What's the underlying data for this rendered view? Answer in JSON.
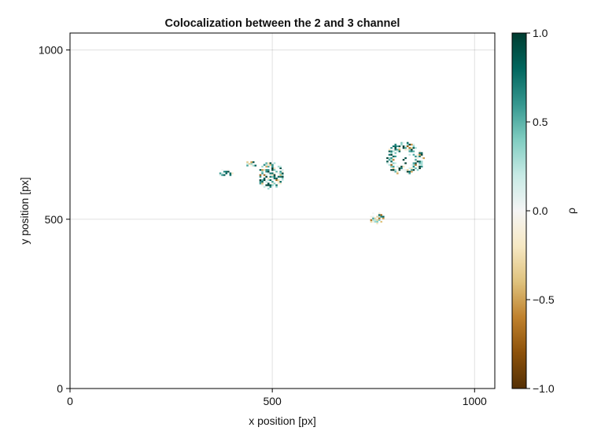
{
  "chart_data": {
    "type": "heatmap",
    "title": "Colocalization between the 2 and 3 channel",
    "xlabel": "x position [px]",
    "ylabel": "y position [px]",
    "xlim": [
      0,
      1050
    ],
    "ylim": [
      0,
      1050
    ],
    "x_ticks": [
      0,
      500,
      1000
    ],
    "y_ticks": [
      0,
      500,
      1000
    ],
    "x_tick_labels": [
      "0",
      "500",
      "1000"
    ],
    "y_tick_labels": [
      "0",
      "500",
      "1000"
    ],
    "grid": true,
    "colorbar": {
      "label": "ρ",
      "range": [
        -1.0,
        1.0
      ],
      "ticks": [
        -1.0,
        -0.5,
        0.0,
        0.5,
        1.0
      ],
      "tick_labels": [
        "−1.0",
        "−0.5",
        "0.0",
        "0.5",
        "1.0"
      ],
      "colormap": "BrBG",
      "colors": [
        "#543005",
        "#8c510a",
        "#bf812d",
        "#dfc27d",
        "#f6e8c3",
        "#f5f5f5",
        "#c7eae5",
        "#80cdc1",
        "#35978f",
        "#01665e",
        "#003c30"
      ]
    },
    "regions": [
      {
        "name": "",
        "cx": 382,
        "cy": 634,
        "rx": 18,
        "ry": 11,
        "mean_rho": 0.35
      },
      {
        "name": "",
        "cx": 445,
        "cy": 660,
        "rx": 14,
        "ry": 9,
        "mean_rho": 0.3
      },
      {
        "name": "",
        "cx": 495,
        "cy": 625,
        "rx": 32,
        "ry": 42,
        "mean_rho": 0.4
      },
      {
        "name": "",
        "cx": 755,
        "cy": 500,
        "rx": 18,
        "ry": 20,
        "mean_rho": 0.3
      },
      {
        "name": "",
        "cx": 825,
        "cy": 676,
        "rx": 48,
        "ry": 48,
        "mean_rho": 0.45
      }
    ]
  }
}
